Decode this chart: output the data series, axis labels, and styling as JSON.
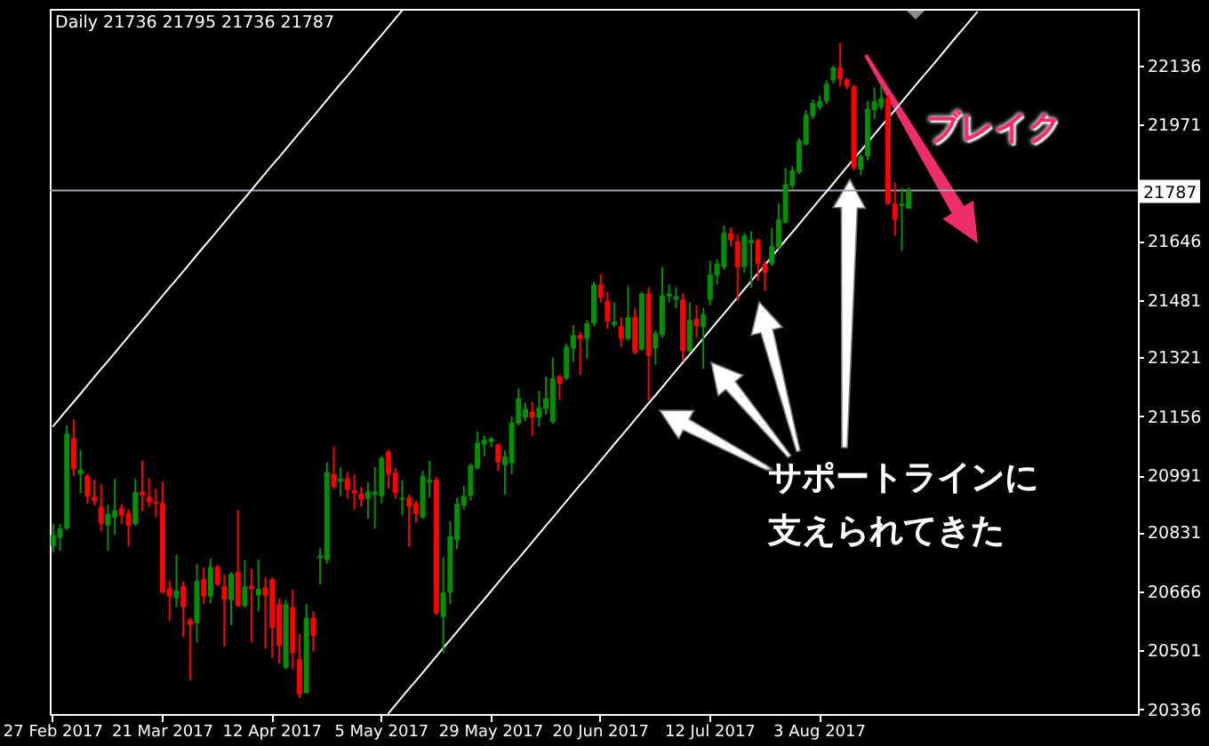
{
  "chart_data": {
    "type": "candlestick",
    "title": "Daily 21736 21795 21736 21787",
    "categories": [
      "27 Feb 2017",
      null,
      null,
      null,
      null,
      null,
      null,
      null,
      null,
      null,
      null,
      null,
      null,
      null,
      null,
      null,
      "21 Mar 2017",
      null,
      null,
      null,
      null,
      null,
      null,
      null,
      null,
      null,
      null,
      null,
      null,
      null,
      null,
      null,
      "12 Apr 2017",
      null,
      null,
      null,
      null,
      null,
      null,
      null,
      null,
      null,
      null,
      null,
      null,
      null,
      null,
      null,
      "5 May 2017",
      null,
      null,
      null,
      null,
      null,
      null,
      null,
      null,
      null,
      null,
      null,
      null,
      null,
      null,
      null,
      "29 May 2017",
      null,
      null,
      null,
      null,
      null,
      null,
      null,
      null,
      null,
      null,
      null,
      null,
      null,
      null,
      null,
      "20 Jun 2017",
      null,
      null,
      null,
      null,
      null,
      null,
      null,
      null,
      null,
      null,
      null,
      null,
      null,
      null,
      null,
      "12 Jul 2017",
      null,
      null,
      null,
      null,
      null,
      null,
      null,
      null,
      null,
      null,
      null,
      null,
      null,
      null,
      null,
      "3 Aug 2017",
      null,
      null,
      null,
      null,
      null,
      null,
      null,
      null,
      null,
      null,
      null,
      null,
      null,
      null,
      null,
      null,
      null,
      null,
      null,
      null,
      null,
      null,
      null,
      null,
      null,
      null,
      null,
      null,
      null,
      null,
      null,
      null,
      null,
      null,
      null,
      null,
      null,
      null,
      null,
      null,
      null,
      null,
      null,
      null,
      null,
      null
    ],
    "ohlc": [
      [
        20792,
        20854,
        20776,
        20824
      ],
      [
        20816,
        20854,
        20779,
        20842
      ],
      [
        20842,
        21130,
        20837,
        21107
      ],
      [
        21094,
        21147,
        20989,
        21008
      ],
      [
        20994,
        21061,
        20941,
        21006
      ],
      [
        20989,
        20994,
        20912,
        20931
      ],
      [
        20931,
        20978,
        20907,
        20918
      ],
      [
        20903,
        20965,
        20834,
        20855
      ],
      [
        20850,
        20908,
        20779,
        20883
      ],
      [
        20872,
        20981,
        20824,
        20893
      ],
      [
        20898,
        20910,
        20855,
        20878
      ],
      [
        20885,
        20895,
        20792,
        20850
      ],
      [
        20854,
        20981,
        20849,
        20943
      ],
      [
        20945,
        21032,
        20890,
        20935
      ],
      [
        20931,
        20983,
        20902,
        20915
      ],
      [
        20917,
        20953,
        20873,
        20912
      ],
      [
        20913,
        20973,
        20660,
        20663
      ],
      [
        20675,
        20696,
        20584,
        20652
      ],
      [
        20647,
        20768,
        20622,
        20668
      ],
      [
        20681,
        20693,
        20538,
        20622
      ],
      [
        20586,
        20592,
        20418,
        20572
      ],
      [
        20577,
        20743,
        20523,
        20695
      ],
      [
        20700,
        20733,
        20630,
        20652
      ],
      [
        20652,
        20758,
        20633,
        20734
      ],
      [
        20734,
        20740,
        20681,
        20685
      ],
      [
        20680,
        20713,
        20511,
        20643
      ],
      [
        20642,
        20720,
        20572,
        20715
      ],
      [
        20720,
        20893,
        20622,
        20625
      ],
      [
        20625,
        20753,
        20620,
        20680
      ],
      [
        20681,
        20729,
        20523,
        20673
      ],
      [
        20655,
        20754,
        20610,
        20673
      ],
      [
        20677,
        20705,
        20506,
        20655
      ],
      [
        20700,
        20705,
        20480,
        20564
      ],
      [
        20630,
        20646,
        20464,
        20514
      ],
      [
        20453,
        20643,
        20448,
        20630
      ],
      [
        20622,
        20671,
        20448,
        20494
      ],
      [
        20476,
        20547,
        20368,
        20378
      ],
      [
        20382,
        20630,
        20380,
        20592
      ],
      [
        20592,
        20610,
        20498,
        20542
      ],
      [
        20759,
        20787,
        20685,
        20766
      ],
      [
        20754,
        21027,
        20743,
        21000
      ],
      [
        20994,
        21072,
        20952,
        20958
      ],
      [
        20973,
        21014,
        20933,
        20981
      ],
      [
        20981,
        20999,
        20925,
        20950
      ],
      [
        20950,
        20994,
        20895,
        20940
      ],
      [
        20940,
        20958,
        20903,
        20923
      ],
      [
        20925,
        20971,
        20870,
        20945
      ],
      [
        20936,
        21014,
        20842,
        20945
      ],
      [
        20933,
        21045,
        20912,
        21039
      ],
      [
        21057,
        21062,
        20953,
        20994
      ],
      [
        20998,
        21011,
        20925,
        20941
      ],
      [
        20923,
        20978,
        20878,
        20928
      ],
      [
        20928,
        20936,
        20791,
        20903
      ],
      [
        20911,
        20920,
        20859,
        20882
      ],
      [
        20873,
        21003,
        20868,
        20989
      ],
      [
        20971,
        21031,
        20928,
        20978
      ],
      [
        20978,
        20985,
        20600,
        20605
      ],
      [
        20594,
        20762,
        20494,
        20663
      ],
      [
        20663,
        20862,
        20630,
        20820
      ],
      [
        20809,
        20928,
        20784,
        20911
      ],
      [
        20906,
        20961,
        20895,
        20933
      ],
      [
        20933,
        21024,
        20920,
        21019
      ],
      [
        21011,
        21113,
        21006,
        21082
      ],
      [
        21077,
        21102,
        21044,
        21090
      ],
      [
        21084,
        21097,
        21069,
        21094
      ],
      [
        21077,
        21080,
        21003,
        21027
      ],
      [
        21019,
        21060,
        20936,
        21044
      ],
      [
        21024,
        21155,
        20994,
        21138
      ],
      [
        21135,
        21234,
        21130,
        21206
      ],
      [
        21152,
        21193,
        21143,
        21176
      ],
      [
        21168,
        21196,
        21102,
        21152
      ],
      [
        21152,
        21226,
        21127,
        21180
      ],
      [
        21176,
        21267,
        21160,
        21206
      ],
      [
        21140,
        21320,
        21135,
        21262
      ],
      [
        21267,
        21272,
        21201,
        21246
      ],
      [
        21262,
        21358,
        21256,
        21350
      ],
      [
        21345,
        21411,
        21309,
        21383
      ],
      [
        21383,
        21391,
        21272,
        21372
      ],
      [
        21372,
        21425,
        21317,
        21416
      ],
      [
        21416,
        21532,
        21408,
        21524
      ],
      [
        21524,
        21554,
        21474,
        21487
      ],
      [
        21479,
        21504,
        21400,
        21421
      ],
      [
        21411,
        21474,
        21405,
        21420
      ],
      [
        21408,
        21433,
        21350,
        21372
      ],
      [
        21372,
        21519,
        21367,
        21433
      ],
      [
        21433,
        21458,
        21329,
        21334
      ],
      [
        21342,
        21504,
        21339,
        21499
      ],
      [
        21499,
        21516,
        21201,
        21325
      ],
      [
        21345,
        21395,
        21300,
        21388
      ],
      [
        21383,
        21574,
        21375,
        21494
      ],
      [
        21491,
        21524,
        21474,
        21499
      ],
      [
        21482,
        21516,
        21458,
        21491
      ],
      [
        21482,
        21499,
        21309,
        21338
      ],
      [
        21338,
        21474,
        21334,
        21425
      ],
      [
        21428,
        21466,
        21375,
        21408
      ],
      [
        21405,
        21458,
        21289,
        21441
      ],
      [
        21482,
        21590,
        21466,
        21552
      ],
      [
        21549,
        21595,
        21524,
        21582
      ],
      [
        21573,
        21689,
        21565,
        21668
      ],
      [
        21668,
        21684,
        21631,
        21648
      ],
      [
        21645,
        21664,
        21479,
        21573
      ],
      [
        21573,
        21668,
        21557,
        21661
      ],
      [
        21640,
        21673,
        21515,
        21648
      ],
      [
        21648,
        21653,
        21535,
        21582
      ],
      [
        21582,
        21590,
        21507,
        21557
      ],
      [
        21582,
        21681,
        21577,
        21631
      ],
      [
        21628,
        21751,
        21623,
        21706
      ],
      [
        21698,
        21850,
        21694,
        21805
      ],
      [
        21800,
        21855,
        21792,
        21843
      ],
      [
        21838,
        21933,
        21833,
        21926
      ],
      [
        21916,
        22012,
        21913,
        21999
      ],
      [
        21995,
        22042,
        21987,
        22032
      ],
      [
        22020,
        22053,
        22012,
        22037
      ],
      [
        22037,
        22095,
        22029,
        22086
      ],
      [
        22095,
        22136,
        22086,
        22131
      ],
      [
        22131,
        22200,
        22078,
        22098
      ],
      [
        22098,
        22103,
        22070,
        22078
      ],
      [
        22078,
        22083,
        21843,
        21850
      ],
      [
        21846,
        21888,
        21830,
        21883
      ],
      [
        21883,
        22037,
        21871,
        22015
      ],
      [
        22012,
        22075,
        21987,
        22037
      ],
      [
        22020,
        22080,
        22012,
        22045
      ],
      [
        22045,
        22053,
        21747,
        21750
      ],
      [
        21750,
        21810,
        21661,
        21706
      ],
      [
        21744,
        21794,
        21618,
        21750
      ],
      [
        21736,
        21795,
        21736,
        21787
      ],
      null,
      null,
      null,
      null,
      null,
      null,
      null,
      null,
      null,
      null,
      null,
      null,
      null,
      null,
      null,
      null,
      null,
      null,
      null,
      null,
      null,
      null,
      null,
      null,
      null,
      null,
      null,
      null,
      null,
      null,
      null,
      null,
      null
    ],
    "colors": [
      "#009000",
      "#009000",
      "#009000",
      "#ff0000",
      "#009000",
      "#ff0000",
      "#ff0000",
      "#ff0000",
      "#009000",
      "#009000",
      "#ff0000",
      "#ff0000",
      "#009000",
      "#ff0000",
      "#ff0000",
      "#ff0000",
      "#ff0000",
      "#ff0000",
      "#009000",
      "#ff0000",
      "#ff0000",
      "#009000",
      "#ff0000",
      "#009000",
      "#ff0000",
      "#ff0000",
      "#009000",
      "#ff0000",
      "#009000",
      "#ff0000",
      "#009000",
      "#ff0000",
      "#ff0000",
      "#ff0000",
      "#009000",
      "#ff0000",
      "#ff0000",
      "#009000",
      "#ff0000",
      "#009000",
      "#009000",
      "#ff0000",
      "#009000",
      "#ff0000",
      "#ff0000",
      "#ff0000",
      "#009000",
      "#009000",
      "#009000",
      "#ff0000",
      "#ff0000",
      "#009000",
      "#ff0000",
      "#ff0000",
      "#009000",
      "#009000",
      "#ff0000",
      "#009000",
      "#009000",
      "#009000",
      "#009000",
      "#009000",
      "#009000",
      "#009000",
      "#009000",
      "#ff0000",
      "#009000",
      "#009000",
      "#009000",
      "#009000",
      "#ff0000",
      "#009000",
      "#009000",
      "#009000",
      "#ff0000",
      "#009000",
      "#009000",
      "#ff0000",
      "#009000",
      "#009000",
      "#ff0000",
      "#ff0000",
      "#009000",
      "#ff0000",
      "#009000",
      "#ff0000",
      "#009000",
      "#ff0000",
      "#009000",
      "#009000",
      "#009000",
      "#009000",
      "#ff0000",
      "#009000",
      "#ff0000",
      "#009000",
      "#009000",
      "#009000",
      "#009000",
      "#ff0000",
      "#ff0000",
      "#009000",
      "#009000",
      "#ff0000",
      "#ff0000",
      "#009000",
      "#009000",
      "#009000",
      "#009000",
      "#009000",
      "#009000",
      "#009000",
      "#009000",
      "#009000",
      "#009000",
      "#ff0000",
      "#ff0000",
      "#ff0000",
      "#009000",
      "#009000",
      "#009000",
      "#009000",
      "#ff0000",
      "#ff0000",
      "#009000",
      "#009000",
      null,
      null,
      null,
      null,
      null,
      null,
      null,
      null,
      null,
      null,
      null,
      null,
      null,
      null,
      null,
      null,
      null,
      null,
      null,
      null,
      null,
      null,
      null,
      null,
      null,
      null,
      null,
      null,
      null,
      null,
      null,
      null,
      null
    ],
    "series": [
      {
        "type": "line",
        "color": "#ffffff",
        "values": [
          21128,
          21151,
          21174,
          21196,
          21219,
          21242,
          21265,
          21288,
          21310,
          21333,
          21356,
          21379,
          21402,
          21424,
          21447,
          21470,
          21493,
          21516,
          21538,
          21561,
          21584,
          21607,
          21630,
          21652,
          21675,
          21698,
          21721,
          21744,
          21766,
          21789,
          21812,
          21835,
          21858,
          21880,
          21903,
          21926,
          21949,
          21972,
          21994,
          22017,
          22040,
          22063,
          22086,
          22108,
          22131,
          22154,
          22177,
          22200,
          22222,
          22245,
          22268,
          22291,
          null,
          null,
          null,
          null,
          null,
          null,
          null,
          null,
          null,
          null,
          null,
          null,
          null,
          null,
          null,
          null,
          null,
          null,
          null,
          null,
          null,
          null,
          null,
          null,
          null,
          null,
          null,
          null,
          null,
          null,
          null,
          null,
          null,
          null,
          null,
          null,
          null,
          null,
          null,
          null,
          null,
          null,
          null,
          null,
          null,
          null,
          null,
          null,
          null,
          null,
          null,
          null,
          null,
          null,
          null,
          null,
          null,
          null,
          null,
          null,
          null,
          null,
          null,
          null,
          null,
          null,
          null,
          null,
          null,
          null,
          null,
          null,
          null,
          null,
          null,
          null,
          null,
          null,
          null,
          null,
          null,
          null,
          null,
          null,
          null,
          null,
          null,
          null,
          null,
          null,
          null,
          null,
          null,
          null,
          null,
          null,
          null,
          null,
          null,
          null,
          null,
          null,
          null,
          null,
          null,
          null,
          null
        ]
      },
      {
        "type": "line",
        "color": "#ffffff",
        "values": [
          null,
          null,
          null,
          null,
          null,
          null,
          null,
          null,
          null,
          null,
          null,
          null,
          null,
          null,
          null,
          null,
          null,
          null,
          null,
          null,
          null,
          null,
          null,
          null,
          null,
          null,
          null,
          null,
          null,
          null,
          null,
          null,
          null,
          null,
          null,
          null,
          null,
          null,
          null,
          null,
          null,
          null,
          null,
          null,
          null,
          null,
          null,
          null,
          null,
          20325,
          20348,
          20371,
          20394,
          20416,
          20439,
          20462,
          20485,
          20508,
          20530,
          20553,
          20576,
          20599,
          20622,
          20644,
          20667,
          20690,
          20713,
          20736,
          20758,
          20781,
          20804,
          20827,
          20850,
          20872,
          20895,
          20918,
          20941,
          20964,
          20986,
          21009,
          21032,
          21055,
          21078,
          21100,
          21123,
          21146,
          21169,
          21192,
          21214,
          21237,
          21260,
          21283,
          21306,
          21328,
          21351,
          21374,
          21397,
          21420,
          21442,
          21465,
          21488,
          21511,
          21534,
          21556,
          21579,
          21602,
          21625,
          21648,
          21670,
          21693,
          21716,
          21739,
          21762,
          21784,
          21807,
          21830,
          21853,
          21876,
          21898,
          21921,
          21944,
          21967,
          21990,
          22012,
          22035,
          22058,
          22081,
          22104,
          22126,
          22149,
          22172,
          22195,
          22218,
          22240,
          22263,
          22286,
          null,
          null,
          null,
          null,
          null,
          null,
          null,
          null,
          null,
          null,
          null,
          null,
          null,
          null,
          null,
          null,
          null,
          null,
          null,
          null,
          null,
          null,
          null
        ]
      }
    ],
    "ylim": [
      20323,
      22295
    ],
    "yticks": [
      20336,
      20501,
      20666,
      20831,
      20991,
      21156,
      21321,
      21481,
      21646,
      21971,
      22136
    ],
    "ref_lines": [
      {
        "axis": "y",
        "value": 21787,
        "label": "21787",
        "color": "#a0a8b0"
      }
    ],
    "annotations": [
      "サポートラインに支えられてきた",
      "ブレイク"
    ]
  }
}
